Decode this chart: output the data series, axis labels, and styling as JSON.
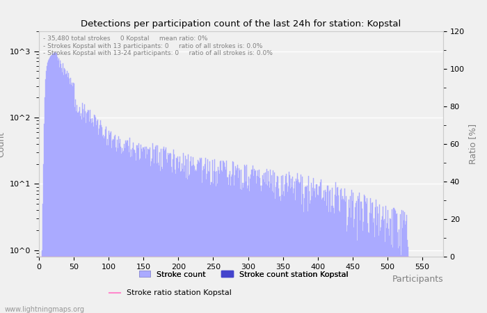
{
  "title": "Detections per participation count of the last 24h for station: Kopstal",
  "xlabel": "Participants",
  "ylabel_left": "Count",
  "ylabel_right": "Ratio [%]",
  "annotation_lines": [
    "- 35,480 total strokes     0 Kopstal     mean ratio: 0%",
    "- Strokes Kopstal with 13 participants: 0     ratio of all strokes is: 0.0%",
    "- Strokes Kopstal with 13-24 participants: 0     ratio of all strokes is: 0.0%"
  ],
  "bar_color": "#aaaaff",
  "station_bar_color": "#4444cc",
  "ratio_line_color": "#ff88cc",
  "background_color": "#f0f0f0",
  "grid_color": "#ffffff",
  "watermark": "www.lightningmaps.org",
  "legend_labels": [
    "Stroke count",
    "Stroke count station Kopstal",
    "Stroke ratio station Kopstal"
  ],
  "xlim": [
    0,
    580
  ],
  "ylim_right": [
    0,
    120
  ],
  "x_ticks": [
    0,
    50,
    100,
    150,
    200,
    250,
    300,
    350,
    400,
    450,
    500,
    550
  ],
  "right_yticks": [
    0,
    20,
    40,
    60,
    80,
    100,
    120
  ],
  "left_yticks": [
    1,
    10,
    100,
    1000
  ],
  "left_ytick_labels": [
    "10^0",
    "10^1",
    "10^2",
    "10^3"
  ]
}
